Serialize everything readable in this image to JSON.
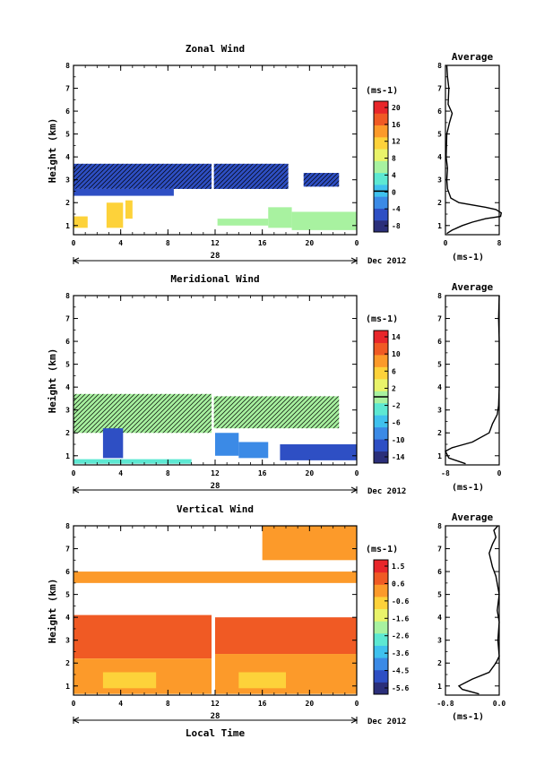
{
  "chart_data": [
    {
      "type": "heatmap",
      "title": "Zonal Wind",
      "xlabel": "",
      "ylabel": "Height (km)",
      "x_ticks": [
        "0",
        "4",
        "8",
        "12",
        "16",
        "20",
        "0"
      ],
      "x_range": [
        0,
        24
      ],
      "y_ticks": [
        "1",
        "2",
        "3",
        "4",
        "5",
        "6",
        "7",
        "8"
      ],
      "y_range": [
        0.6,
        8.0
      ],
      "date_day_label": "28",
      "date_month_label": "Dec 2012",
      "colorbar": {
        "unit": "(ms-1)",
        "ticks": [
          "20",
          "16",
          "12",
          "8",
          "4",
          "0",
          "-4",
          "-8"
        ],
        "range": [
          -10,
          22
        ],
        "contour_value": 0
      },
      "regions": [
        {
          "x0": 0,
          "x1": 11.7,
          "y0": 2.6,
          "y1": 3.7,
          "value": -6,
          "hatched": true
        },
        {
          "x0": 11.9,
          "x1": 18.2,
          "y0": 2.6,
          "y1": 3.7,
          "value": -6,
          "hatched": true
        },
        {
          "x0": 19.5,
          "x1": 22.5,
          "y0": 2.7,
          "y1": 3.3,
          "value": -6,
          "hatched": true
        },
        {
          "x0": 0,
          "x1": 8.5,
          "y0": 2.3,
          "y1": 2.6,
          "value": -5,
          "hatched": false
        },
        {
          "x0": 0,
          "x1": 1.2,
          "y0": 0.9,
          "y1": 1.4,
          "value": 13,
          "hatched": false
        },
        {
          "x0": 2.8,
          "x1": 4.2,
          "y0": 0.9,
          "y1": 2.0,
          "value": 11,
          "hatched": false
        },
        {
          "x0": 4.4,
          "x1": 5.0,
          "y0": 1.3,
          "y1": 2.1,
          "value": 11,
          "hatched": false
        },
        {
          "x0": 12.2,
          "x1": 16.5,
          "y0": 1.0,
          "y1": 1.3,
          "value": 5,
          "hatched": false
        },
        {
          "x0": 16.5,
          "x1": 18.5,
          "y0": 0.9,
          "y1": 1.8,
          "value": 7,
          "hatched": false
        },
        {
          "x0": 18.5,
          "x1": 24,
          "y0": 0.8,
          "y1": 1.6,
          "value": 5,
          "hatched": false
        }
      ]
    },
    {
      "type": "line",
      "title": "Average",
      "xlabel": "(ms-1)",
      "x_ticks": [
        "0",
        "8"
      ],
      "x_range": [
        0,
        8
      ],
      "y_range": [
        0.6,
        8.0
      ],
      "y_ticks": [
        "1",
        "2",
        "3",
        "4",
        "5",
        "6",
        "7",
        "8"
      ],
      "series": [
        {
          "x": [
            0.2,
            1.0,
            2.5,
            4.0,
            6.0,
            8.2,
            8.3,
            7.5,
            6.0,
            2.0,
            0.8,
            0.3,
            0.2,
            0.3,
            0.1,
            0.2,
            0.6,
            1.0,
            0.4,
            0.5,
            0.3,
            0.2
          ],
          "y": [
            0.65,
            0.8,
            1.0,
            1.15,
            1.3,
            1.4,
            1.55,
            1.7,
            1.8,
            2.0,
            2.2,
            2.6,
            3.0,
            3.5,
            4.0,
            5.0,
            5.5,
            5.9,
            6.3,
            7.0,
            7.5,
            8.0
          ]
        }
      ]
    },
    {
      "type": "heatmap",
      "title": "Meridional Wind",
      "xlabel": "",
      "ylabel": "Height (km)",
      "x_ticks": [
        "0",
        "4",
        "8",
        "12",
        "16",
        "20",
        "0"
      ],
      "x_range": [
        0,
        24
      ],
      "y_ticks": [
        "1",
        "2",
        "3",
        "4",
        "5",
        "6",
        "7",
        "8"
      ],
      "y_range": [
        0.6,
        8.0
      ],
      "date_day_label": "28",
      "date_month_label": "Dec 2012",
      "colorbar": {
        "unit": "(ms-1)",
        "ticks": [
          "14",
          "10",
          "6",
          "2",
          "-2",
          "-6",
          "-10",
          "-14"
        ],
        "range": [
          -16,
          16
        ],
        "contour_value": 0
      },
      "regions": [
        {
          "x0": 0,
          "x1": 11.7,
          "y0": 2.0,
          "y1": 3.7,
          "value": -1,
          "hatched": true
        },
        {
          "x0": 11.9,
          "x1": 22.5,
          "y0": 2.2,
          "y1": 3.6,
          "value": -1,
          "hatched": true
        },
        {
          "x0": 2.5,
          "x1": 4.2,
          "y0": 0.9,
          "y1": 2.2,
          "value": -12,
          "hatched": false
        },
        {
          "x0": 12.0,
          "x1": 14.0,
          "y0": 1.0,
          "y1": 2.0,
          "value": -10,
          "hatched": false
        },
        {
          "x0": 14.0,
          "x1": 16.5,
          "y0": 0.9,
          "y1": 1.6,
          "value": -8,
          "hatched": false
        },
        {
          "x0": 17.5,
          "x1": 24,
          "y0": 0.8,
          "y1": 1.5,
          "value": -11,
          "hatched": false
        },
        {
          "x0": 0,
          "x1": 10.0,
          "y0": 0.65,
          "y1": 0.85,
          "value": -3,
          "hatched": false
        }
      ]
    },
    {
      "type": "line",
      "title": "Average",
      "xlabel": "(ms-1)",
      "x_ticks": [
        "-8",
        "0"
      ],
      "x_range": [
        -8,
        0
      ],
      "y_range": [
        0.6,
        8.0
      ],
      "y_ticks": [
        "1",
        "2",
        "3",
        "4",
        "5",
        "6",
        "7",
        "8"
      ],
      "series": [
        {
          "x": [
            -5.0,
            -7.5,
            -8.0,
            -7.0,
            -4.0,
            -1.5,
            -1.0,
            -0.3,
            -0.1,
            0.0,
            0.0,
            0.0,
            -0.1,
            0.0
          ],
          "y": [
            0.65,
            0.9,
            1.2,
            1.35,
            1.6,
            2.0,
            2.4,
            2.8,
            3.2,
            4.0,
            5.0,
            6.0,
            7.0,
            8.0
          ]
        }
      ]
    },
    {
      "type": "heatmap",
      "title": "Vertical Wind",
      "xlabel": "Local Time",
      "ylabel": "Height (km)",
      "x_ticks": [
        "0",
        "4",
        "8",
        "12",
        "16",
        "20",
        "0"
      ],
      "x_range": [
        0,
        24
      ],
      "y_ticks": [
        "1",
        "2",
        "3",
        "4",
        "5",
        "6",
        "7",
        "8"
      ],
      "y_range": [
        0.6,
        8.0
      ],
      "date_day_label": "28",
      "date_month_label": "Dec 2012",
      "colorbar": {
        "unit": "(ms-1)",
        "ticks": [
          "1.5",
          "0.6",
          "-0.6",
          "-1.6",
          "-2.6",
          "-3.6",
          "-4.5",
          "-5.6"
        ],
        "range": [
          -6,
          2
        ],
        "contour_value": null
      },
      "regions": [
        {
          "x0": 0,
          "x1": 24,
          "y0": 5.5,
          "y1": 6.0,
          "value": 0.3,
          "hatched": false
        },
        {
          "x0": 0,
          "x1": 11.7,
          "y0": 2.2,
          "y1": 4.1,
          "value": 0.6,
          "hatched": false
        },
        {
          "x0": 12.0,
          "x1": 24,
          "y0": 2.4,
          "y1": 4.0,
          "value": 0.6,
          "hatched": false
        },
        {
          "x0": 0,
          "x1": 11.7,
          "y0": 0.65,
          "y1": 2.2,
          "value": 0.3,
          "hatched": false
        },
        {
          "x0": 12.0,
          "x1": 24,
          "y0": 0.65,
          "y1": 2.4,
          "value": 0.3,
          "hatched": false
        },
        {
          "x0": 2.5,
          "x1": 7.0,
          "y0": 0.9,
          "y1": 1.6,
          "value": -0.6,
          "hatched": false
        },
        {
          "x0": 14.0,
          "x1": 18.0,
          "y0": 0.9,
          "y1": 1.6,
          "value": -0.6,
          "hatched": false
        },
        {
          "x0": 16.0,
          "x1": 24,
          "y0": 6.5,
          "y1": 8.0,
          "value": 0.3,
          "hatched": false
        }
      ]
    },
    {
      "type": "line",
      "title": "Average",
      "xlabel": "(ms-1)",
      "x_ticks": [
        "-0.8",
        "0.0"
      ],
      "x_range": [
        -0.8,
        0
      ],
      "y_range": [
        0.6,
        8.0
      ],
      "y_ticks": [
        "1",
        "2",
        "3",
        "4",
        "5",
        "6",
        "7",
        "8"
      ],
      "series": [
        {
          "x": [
            -0.3,
            -0.55,
            -0.6,
            -0.4,
            -0.15,
            -0.05,
            0.0,
            -0.02,
            0.0,
            -0.03,
            0.0,
            -0.05,
            -0.1,
            -0.15,
            -0.1,
            -0.05,
            -0.08,
            -0.02
          ],
          "y": [
            0.65,
            0.85,
            1.0,
            1.3,
            1.6,
            2.0,
            2.3,
            3.0,
            3.8,
            4.3,
            5.0,
            5.8,
            6.2,
            6.8,
            7.2,
            7.5,
            7.8,
            8.0
          ]
        }
      ]
    }
  ]
}
